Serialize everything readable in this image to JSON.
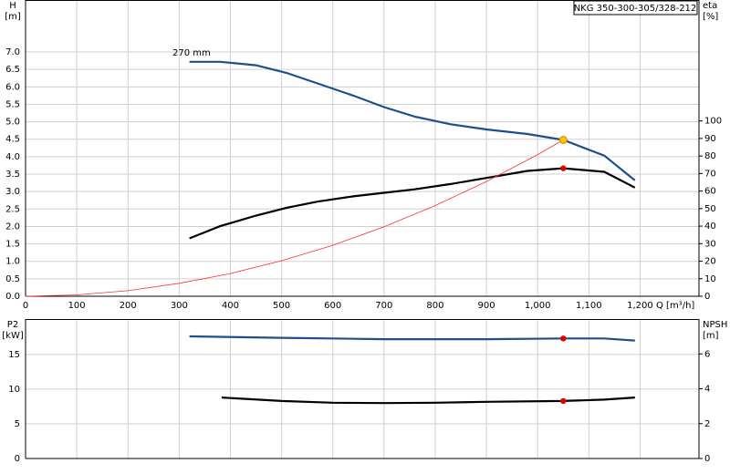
{
  "chart_data": [
    {
      "type": "line",
      "title": "NKG 350-300-305/328-212",
      "ylabel": "H",
      "yunit": "[m]",
      "y2label": "eta",
      "y2unit": "[%]",
      "xlabel": "Q [m³/h]",
      "annotation": "270 mm",
      "grid": true,
      "xlim": [
        0,
        1315
      ],
      "xticks": [
        0,
        100,
        200,
        300,
        400,
        500,
        600,
        700,
        800,
        900,
        {
          "value": 1000,
          "label": "1,000"
        },
        {
          "value": 1100,
          "label": "1,100"
        },
        {
          "value": 1200,
          "label": "1,200"
        }
      ],
      "ylim": [
        0,
        8.49
      ],
      "yticks": [
        {
          "value": 0,
          "label": "0.0"
        },
        0.5,
        {
          "value": 1,
          "label": "1.0"
        },
        1.5,
        {
          "value": 2,
          "label": "2.0"
        },
        2.5,
        {
          "value": 3,
          "label": "3.0"
        },
        3.5,
        {
          "value": 4,
          "label": "4.0"
        },
        4.5,
        {
          "value": 5,
          "label": "5.0"
        },
        5.5,
        {
          "value": 6,
          "label": "6.0"
        },
        6.5,
        {
          "value": 7,
          "label": "7.0"
        }
      ],
      "y2lim": [
        0,
        169
      ],
      "y2ticks": [
        0,
        10,
        20,
        30,
        40,
        50,
        60,
        70,
        80,
        90,
        100
      ],
      "series": [
        {
          "color": "#1f4e8c",
          "width": 2.2,
          "axis": "y",
          "x": [
            320,
            380,
            450,
            510,
            570,
            640,
            700,
            760,
            830,
            900,
            980,
            1050,
            1130,
            1190
          ],
          "values": [
            6.72,
            6.72,
            6.62,
            6.4,
            6.1,
            5.75,
            5.42,
            5.15,
            4.93,
            4.78,
            4.65,
            4.48,
            4.03,
            3.32
          ]
        },
        {
          "color": "#000000",
          "width": 2.2,
          "axis": "y2",
          "x": [
            320,
            380,
            450,
            510,
            570,
            640,
            700,
            760,
            830,
            900,
            980,
            1050,
            1130,
            1190
          ],
          "values": [
            33,
            40,
            46,
            50.5,
            54,
            57,
            59,
            61,
            64,
            67.5,
            71.5,
            73,
            71,
            62
          ]
        },
        {
          "color": "#ff3030",
          "width": 0.8,
          "axis": "y",
          "x": [
            0,
            100,
            200,
            300,
            400,
            500,
            600,
            700,
            800,
            900,
            1000,
            1050
          ],
          "values": [
            0,
            0.04,
            0.16,
            0.37,
            0.65,
            1.02,
            1.46,
            1.99,
            2.6,
            3.29,
            4.06,
            4.48
          ]
        }
      ],
      "points": [
        {
          "x": 1050,
          "y": 4.48,
          "color": "#f5c400",
          "axis": "y"
        },
        {
          "x": 1050,
          "y": 73,
          "color": "#e00000",
          "axis": "y2"
        }
      ]
    },
    {
      "type": "line",
      "ylabel": "P2",
      "yunit": "[kW]",
      "y2label": "NPSH",
      "y2unit": "[m]",
      "grid": true,
      "xlim": [
        0,
        1315
      ],
      "xticks": [
        0,
        100,
        200,
        300,
        400,
        500,
        600,
        700,
        800,
        900,
        1000,
        1100,
        1200
      ],
      "ylim": [
        0,
        20.1
      ],
      "yticks": [
        0,
        5,
        10,
        15
      ],
      "y2lim": [
        0,
        8
      ],
      "y2ticks": [
        0,
        2,
        4,
        6
      ],
      "series": [
        {
          "color": "#1f4e8c",
          "width": 2.2,
          "axis": "y",
          "x": [
            320,
            500,
            700,
            900,
            1050,
            1130,
            1190
          ],
          "values": [
            17.6,
            17.4,
            17.2,
            17.2,
            17.3,
            17.3,
            17.0
          ]
        },
        {
          "color": "#000000",
          "width": 2.2,
          "axis": "y2",
          "x": [
            383,
            500,
            600,
            700,
            800,
            900,
            1050,
            1130,
            1190
          ],
          "values": [
            3.5,
            3.3,
            3.2,
            3.18,
            3.2,
            3.25,
            3.3,
            3.38,
            3.5
          ]
        }
      ],
      "points": [
        {
          "x": 1050,
          "y": 17.3,
          "color": "#e00000",
          "axis": "y"
        },
        {
          "x": 1050,
          "y": 3.3,
          "color": "#e00000",
          "axis": "y2"
        }
      ]
    }
  ]
}
